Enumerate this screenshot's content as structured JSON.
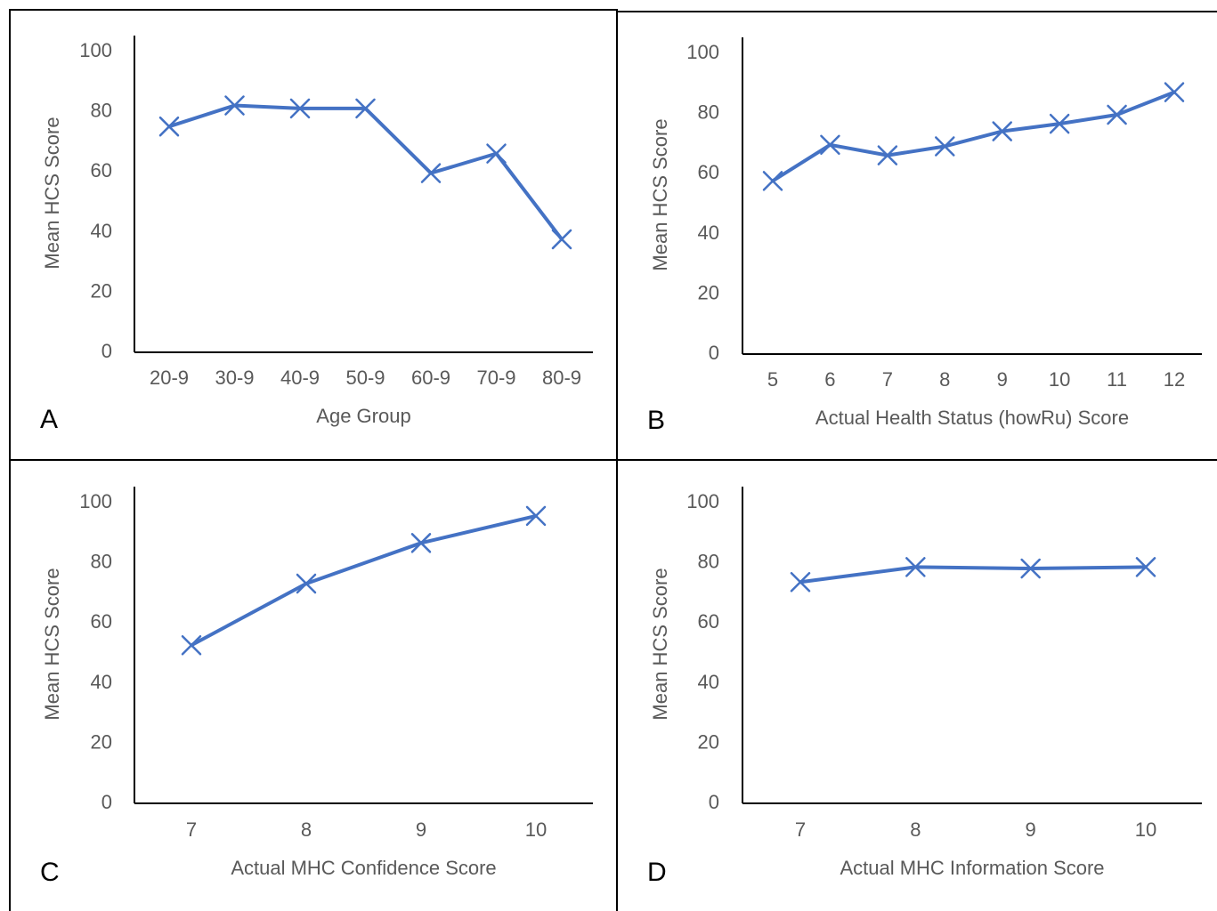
{
  "colors": {
    "series": "#4472C4",
    "axis": "#000000",
    "text": "#595959"
  },
  "chart_data": [
    {
      "type": "line",
      "panel": "A",
      "xlabel": "Age Group",
      "ylabel": "Mean HCS Score",
      "ylim": [
        0,
        100
      ],
      "yticks": [
        0,
        20,
        40,
        60,
        80,
        100
      ],
      "categories": [
        "20-9",
        "30-9",
        "40-9",
        "50-9",
        "60-9",
        "70-9",
        "80-9"
      ],
      "values": [
        74.5,
        81.5,
        80.5,
        80.5,
        59,
        65.5,
        37
      ],
      "marker": "x",
      "grid": false,
      "legend": "none"
    },
    {
      "type": "line",
      "panel": "B",
      "xlabel": "Actual Health Status (howRu) Score",
      "ylabel": "Mean HCS Score",
      "ylim": [
        0,
        100
      ],
      "yticks": [
        0,
        20,
        40,
        60,
        80,
        100
      ],
      "categories": [
        "5",
        "6",
        "7",
        "8",
        "9",
        "10",
        "11",
        "12"
      ],
      "values": [
        57,
        69,
        65.5,
        68.5,
        73.5,
        76,
        79,
        86.5
      ],
      "marker": "x",
      "grid": false,
      "legend": "none"
    },
    {
      "type": "line",
      "panel": "C",
      "xlabel": "Actual MHC Confidence Score",
      "ylabel": "Mean HCS Score",
      "ylim": [
        0,
        100
      ],
      "yticks": [
        0,
        20,
        40,
        60,
        80,
        100
      ],
      "categories": [
        "7",
        "8",
        "9",
        "10"
      ],
      "values": [
        52,
        72.5,
        86,
        95
      ],
      "marker": "x",
      "grid": false,
      "legend": "none"
    },
    {
      "type": "line",
      "panel": "D",
      "xlabel": "Actual MHC Information Score",
      "ylabel": "Mean HCS Score",
      "ylim": [
        0,
        100
      ],
      "yticks": [
        0,
        20,
        40,
        60,
        80,
        100
      ],
      "categories": [
        "7",
        "8",
        "9",
        "10"
      ],
      "values": [
        73,
        78,
        77.5,
        78
      ],
      "marker": "x",
      "grid": false,
      "legend": "none"
    }
  ]
}
